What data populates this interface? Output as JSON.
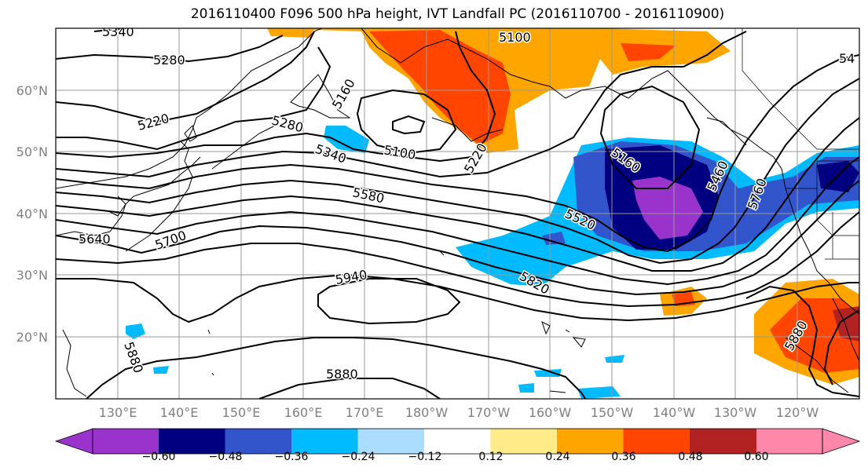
{
  "title": "2016110400 F096 500 hPa height, IVT Landfall PC (2016110700 - 2016110900)",
  "lat_labels": [
    "60°N",
    "50°N",
    "40°N",
    "30°N",
    "20°N"
  ],
  "lon_labels": [
    "130°E",
    "140°E",
    "150°E",
    "160°E",
    "170°E",
    "180°W",
    "170°W",
    "160°W",
    "150°W",
    "140°W",
    "130°W",
    "120°W"
  ],
  "contour_labels": [
    "5340",
    "5280",
    "5220",
    "5280",
    "5340",
    "5580",
    "5640",
    "5700",
    "5940",
    "5880",
    "5160",
    "5100",
    "5100",
    "5220",
    "5160",
    "5520",
    "5820",
    "5460",
    "5760",
    "5880",
    "5880",
    "54"
  ],
  "colorbar": {
    "colors": [
      "#9933cc",
      "#000080",
      "#3355cc",
      "#00bbff",
      "#aaddff",
      "#ffffff",
      "#ffeb88",
      "#ffa500",
      "#ff4500",
      "#b22222",
      "#ff88aa"
    ],
    "tick_labels": [
      "−0.60",
      "−0.48",
      "−0.36",
      "−0.24",
      "−0.12",
      "0.12",
      "0.24",
      "0.36",
      "0.48",
      "0.60"
    ]
  }
}
